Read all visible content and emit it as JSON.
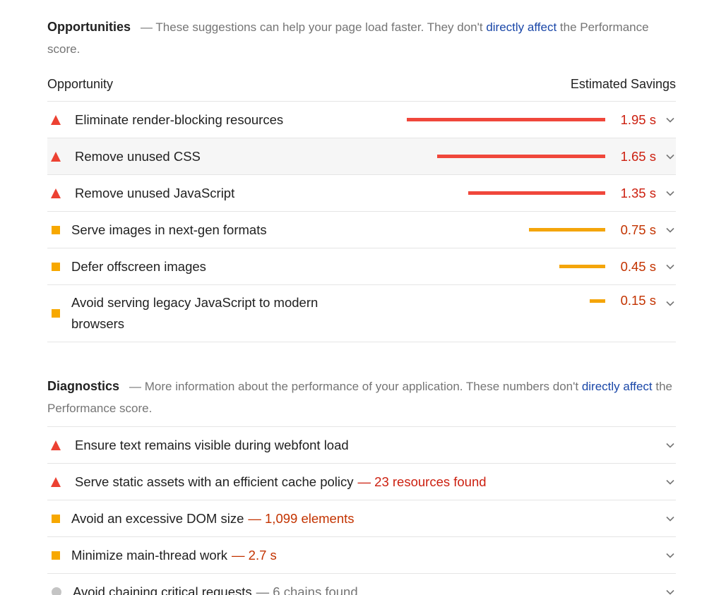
{
  "opportunities": {
    "title": "Opportunities",
    "desc_pre": "— These suggestions can help your page load faster. They don't ",
    "desc_link": "directly affect",
    "desc_post": " the Performance score.",
    "col_left": "Opportunity",
    "col_right": "Estimated Savings",
    "items": [
      {
        "label": "Eliminate render-blocking resources",
        "savings": "1.95 s",
        "severity": "fail",
        "bar_fraction": 1.0
      },
      {
        "label": "Remove unused CSS",
        "savings": "1.65 s",
        "severity": "fail",
        "bar_fraction": 0.846
      },
      {
        "label": "Remove unused JavaScript",
        "savings": "1.35 s",
        "severity": "fail",
        "bar_fraction": 0.692
      },
      {
        "label": "Serve images in next-gen formats",
        "savings": "0.75 s",
        "severity": "average",
        "bar_fraction": 0.385
      },
      {
        "label": "Defer offscreen images",
        "savings": "0.45 s",
        "severity": "average",
        "bar_fraction": 0.231
      },
      {
        "label": "Avoid serving legacy JavaScript to modern browsers",
        "savings": "0.15 s",
        "severity": "average",
        "bar_fraction": 0.077
      }
    ]
  },
  "diagnostics": {
    "title": "Diagnostics",
    "desc_pre": "— More information about the performance of your application. These numbers don't ",
    "desc_link": "directly affect",
    "desc_post": " the Performance score.",
    "items": [
      {
        "label": "Ensure text remains visible during webfont load",
        "detail": "",
        "severity": "fail"
      },
      {
        "label": "Serve static assets with an efficient cache policy",
        "detail": "— 23 resources found",
        "severity": "fail"
      },
      {
        "label": "Avoid an excessive DOM size",
        "detail": "— 1,099 elements",
        "severity": "average"
      },
      {
        "label": "Minimize main-thread work",
        "detail": "— 2.7 s",
        "severity": "average"
      },
      {
        "label": "Avoid chaining critical requests",
        "detail": "— 6 chains found",
        "severity": "info"
      }
    ]
  },
  "colors": {
    "fail": "#ec4132",
    "average": "#f7a800",
    "info": "#c4c4c4",
    "link": "#1a47a8"
  }
}
